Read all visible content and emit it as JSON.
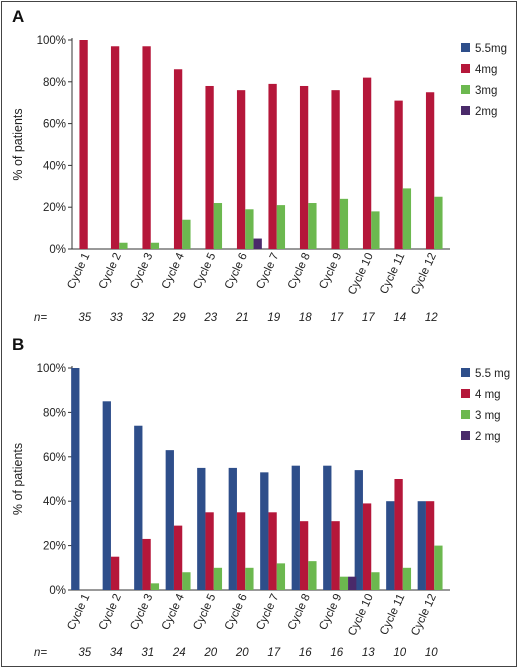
{
  "chart_data": [
    {
      "panel": "A",
      "type": "bar",
      "ylabel": "% of patients",
      "ylim": [
        0,
        100
      ],
      "yticks": [
        "0%",
        "20%",
        "40%",
        "60%",
        "80%",
        "100%"
      ],
      "categories": [
        "Cycle 1",
        "Cycle 2",
        "Cycle 3",
        "Cycle 4",
        "Cycle 5",
        "Cycle 6",
        "Cycle 7",
        "Cycle 8",
        "Cycle 9",
        "Cycle 10",
        "Cycle 11",
        "Cycle 12"
      ],
      "n_label": "n=",
      "n_values": [
        "35",
        "33",
        "32",
        "29",
        "23",
        "21",
        "19",
        "18",
        "17",
        "17",
        "14",
        "12"
      ],
      "legend_position": "right",
      "series": [
        {
          "name": "5.5mg",
          "color": "#2e4e8a",
          "values": [
            0,
            0,
            0,
            0,
            0,
            0,
            0,
            0,
            0,
            0,
            0,
            0
          ]
        },
        {
          "name": "4mg",
          "color": "#b5173a",
          "values": [
            100,
            97,
            97,
            86,
            78,
            76,
            79,
            78,
            76,
            82,
            71,
            75
          ]
        },
        {
          "name": "3mg",
          "color": "#6cb84f",
          "values": [
            0,
            3,
            3,
            14,
            22,
            19,
            21,
            22,
            24,
            18,
            29,
            25
          ]
        },
        {
          "name": "2mg",
          "color": "#4a2a6a",
          "values": [
            0,
            0,
            0,
            0,
            0,
            5,
            0,
            0,
            0,
            0,
            0,
            0
          ]
        }
      ]
    },
    {
      "panel": "B",
      "type": "bar",
      "ylabel": "% of patients",
      "ylim": [
        0,
        100
      ],
      "yticks": [
        "0%",
        "20%",
        "40%",
        "60%",
        "80%",
        "100%"
      ],
      "categories": [
        "Cycle 1",
        "Cycle 2",
        "Cycle 3",
        "Cycle 4",
        "Cycle 5",
        "Cycle 6",
        "Cycle 7",
        "Cycle 8",
        "Cycle 9",
        "Cycle 10",
        "Cycle 11",
        "Cycle 12"
      ],
      "n_label": "n=",
      "n_values": [
        "35",
        "34",
        "31",
        "24",
        "20",
        "20",
        "17",
        "16",
        "16",
        "13",
        "10",
        "10"
      ],
      "legend_position": "right",
      "series": [
        {
          "name": "5.5 mg",
          "color": "#2e4e8a",
          "values": [
            100,
            85,
            74,
            63,
            55,
            55,
            53,
            56,
            56,
            54,
            40,
            40
          ]
        },
        {
          "name": "4 mg",
          "color": "#b5173a",
          "values": [
            0,
            15,
            23,
            29,
            35,
            35,
            35,
            31,
            31,
            39,
            50,
            40
          ]
        },
        {
          "name": "3 mg",
          "color": "#6cb84f",
          "values": [
            0,
            0,
            3,
            8,
            10,
            10,
            12,
            13,
            6,
            8,
            10,
            20
          ]
        },
        {
          "name": "2 mg",
          "color": "#4a2a6a",
          "values": [
            0,
            0,
            0,
            0,
            0,
            0,
            0,
            0,
            6,
            0,
            0,
            0
          ]
        }
      ]
    }
  ]
}
